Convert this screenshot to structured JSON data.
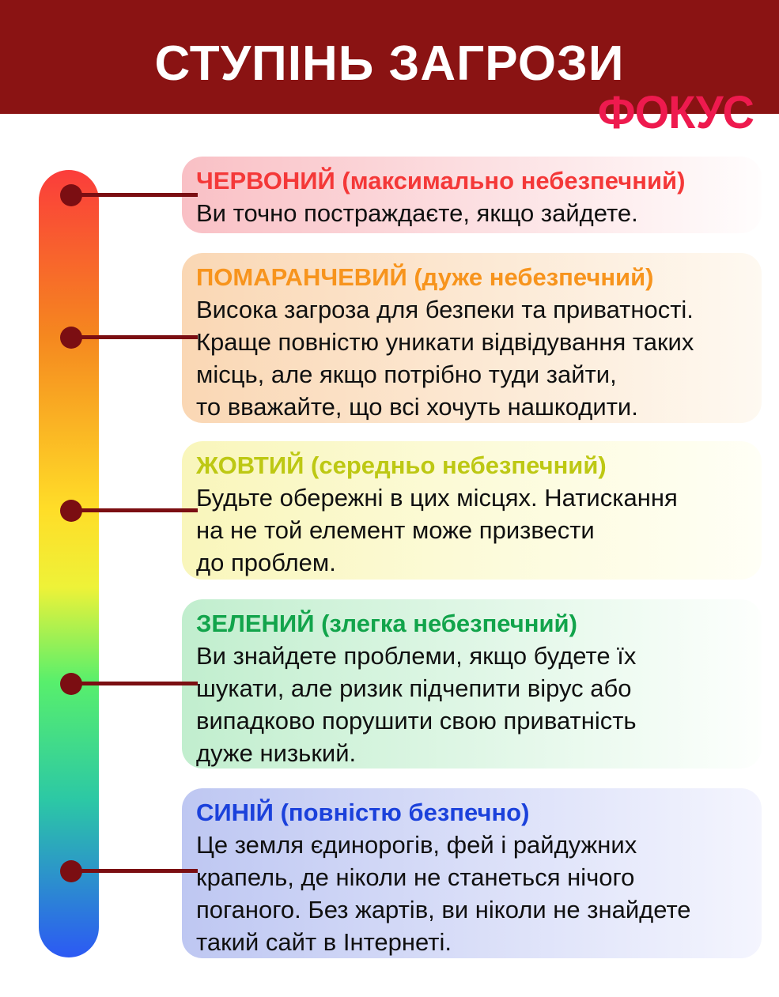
{
  "header": {
    "title": "СТУПІНЬ ЗАГРОЗИ",
    "brand": "ФОКУС"
  },
  "colors": {
    "banner_bg": "#8A1313",
    "brand_pink": "#EE1A4E",
    "connector_maroon": "#7B0E12",
    "bar_gradient": [
      "#FB3D3B",
      "#F5871F",
      "#FFDD28",
      "#58EF6C",
      "#2CC8A5",
      "#2C59F4"
    ],
    "heading_red": "#F43838",
    "heading_orange": "#F7941D",
    "heading_yellow": "#BDC813",
    "heading_green": "#12A44B",
    "heading_blue": "#1B41DB"
  },
  "levels": [
    {
      "id": "red",
      "heading": "ЧЕРВОНИЙ (максимально небезпечний)",
      "body": "Ви точно постраждаєте, якщо зайдете.",
      "heading_color": "#F43838",
      "card_bg": "#F9C0C5"
    },
    {
      "id": "orange",
      "heading": "ПОМАРАНЧЕВИЙ (дуже небезпечний)",
      "body": "Висока загроза для безпеки та приватності.\nКраще повністю уникати відвідування таких\nмісць, але якщо потрібно туди зайти,\nто вважайте, що всі хочуть нашкодити.",
      "heading_color": "#F7941D",
      "card_bg": "#FAD7B4"
    },
    {
      "id": "yellow",
      "heading": "ЖОВТИЙ (середньо небезпечний)",
      "body": "Будьте обережні в цих місцях. Натискання\nна не той елемент може призвести\nдо проблем.",
      "heading_color": "#BDC813",
      "card_bg": "#F9F6BB"
    },
    {
      "id": "green",
      "heading": "ЗЕЛЕНИЙ (злегка небезпечний)",
      "body": "Ви знайдете проблеми, якщо будете їх\nшукати, але ризик підчепити вірус або\nвипадково порушити свою приватність\nдуже низький.",
      "heading_color": "#12A44B",
      "card_bg": "#C1EECE"
    },
    {
      "id": "blue",
      "heading": "СИНІЙ (повністю безпечно)",
      "body": "Це земля єдинорогів, фей і райдужних\nкрапель, де ніколи не станеться нічого\nпоганого. Без жартів, ви ніколи не знайдете\nтакий сайт в Інтернеті.",
      "heading_color": "#1B41DB",
      "card_bg": "#BEC7F2"
    }
  ]
}
